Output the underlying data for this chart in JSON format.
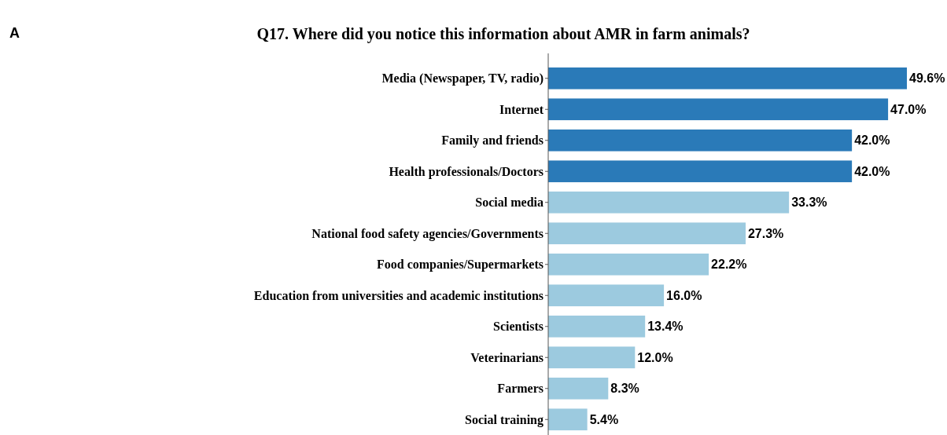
{
  "chart_data": {
    "type": "bar",
    "orientation": "horizontal",
    "title": "Q17. Where did you notice this information about AMR in farm animals?",
    "annotations": [
      "A"
    ],
    "categories": [
      "Media (Newspaper, TV, radio)",
      "Internet",
      "Family and friends",
      "Health professionals/Doctors",
      "Social media",
      "National food safety agencies/Governments",
      "Food companies/Supermarkets",
      "Education from universities and academic institutions",
      "Scientists",
      "Veterinarians",
      "Farmers",
      "Social training"
    ],
    "values": [
      49.6,
      47.0,
      42.0,
      42.0,
      33.3,
      27.3,
      22.2,
      16.0,
      13.4,
      12.0,
      8.3,
      5.4
    ],
    "value_labels": [
      "49.6%",
      "47.0%",
      "42.0%",
      "42.0%",
      "33.3%",
      "27.3%",
      "22.2%",
      "16.0%",
      "13.4%",
      "12.0%",
      "8.3%",
      "5.4%"
    ],
    "colors": [
      "#2a7ab8",
      "#2a7ab8",
      "#2a7ab8",
      "#2a7ab8",
      "#9ccadf",
      "#9ccadf",
      "#9ccadf",
      "#9ccadf",
      "#9ccadf",
      "#9ccadf",
      "#9ccadf",
      "#9ccadf"
    ]
  }
}
